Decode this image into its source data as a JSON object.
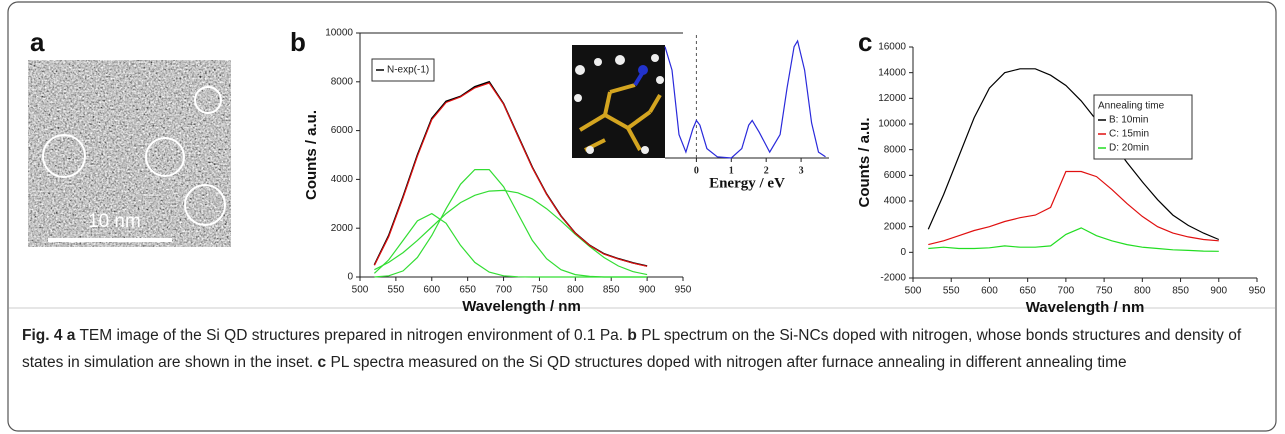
{
  "panel_labels": [
    "a",
    "b",
    "c"
  ],
  "tem_image": {
    "scale_bar": "10 nm"
  },
  "chart_data": [
    {
      "type": "line",
      "x_label": "Wavelength / nm",
      "y_label": "Counts / a.u.",
      "x": [
        520,
        540,
        560,
        580,
        600,
        620,
        640,
        660,
        680,
        700,
        720,
        740,
        760,
        780,
        800,
        820,
        840,
        860,
        880,
        900
      ],
      "series": [
        {
          "color": "#33dd33",
          "values": [
            150,
            700,
            1500,
            2300,
            2600,
            2200,
            1300,
            600,
            200,
            50,
            10,
            0,
            0,
            0,
            0,
            0,
            0,
            0,
            0,
            0
          ]
        },
        {
          "color": "#33dd33",
          "values": [
            0,
            50,
            250,
            800,
            1700,
            2800,
            3800,
            4400,
            4400,
            3700,
            2600,
            1500,
            750,
            300,
            100,
            30,
            0,
            0,
            0,
            0
          ]
        },
        {
          "color": "#33dd33",
          "values": [
            300,
            600,
            1000,
            1500,
            2050,
            2600,
            3050,
            3350,
            3520,
            3550,
            3450,
            3200,
            2800,
            2300,
            1750,
            1250,
            800,
            450,
            220,
            100
          ]
        },
        {
          "name": "N-exp(-1)",
          "color": "#000000",
          "values": [
            500,
            1700,
            3300,
            5000,
            6500,
            7200,
            7400,
            7800,
            8000,
            7100,
            5800,
            4500,
            3400,
            2500,
            1800,
            1300,
            950,
            750,
            580,
            450
          ]
        },
        {
          "color": "#e01010",
          "values": [
            480,
            1650,
            3250,
            4950,
            6450,
            7150,
            7380,
            7750,
            7950,
            7080,
            5780,
            4480,
            3390,
            2490,
            1790,
            1290,
            940,
            740,
            570,
            440
          ]
        }
      ],
      "xlim": [
        500,
        950
      ],
      "ylim": [
        0,
        10000
      ],
      "xticks": [
        500,
        550,
        600,
        650,
        700,
        750,
        800,
        850,
        900,
        950
      ],
      "yticks": [
        0,
        2000,
        4000,
        6000,
        8000,
        10000
      ],
      "legend": "upper left"
    },
    {
      "type": "line",
      "x_label": "Energy / eV",
      "x": [
        -0.9,
        -0.7,
        -0.5,
        -0.3,
        -0.1,
        0,
        0.1,
        0.3,
        0.6,
        1.0,
        1.3,
        1.5,
        1.6,
        1.8,
        2.1,
        2.4,
        2.6,
        2.8,
        2.9,
        3.1,
        3.3,
        3.5,
        3.7
      ],
      "series": [
        {
          "color": "#2a2adb",
          "values": [
            0.95,
            0.75,
            0.2,
            0.05,
            0.25,
            0.32,
            0.28,
            0.08,
            0.01,
            0.0,
            0.08,
            0.28,
            0.32,
            0.22,
            0.05,
            0.2,
            0.6,
            0.95,
            1.0,
            0.75,
            0.3,
            0.05,
            0.01
          ]
        }
      ],
      "xlim": [
        -0.9,
        3.8
      ],
      "ylim": [
        0,
        1.05
      ],
      "xticks": [
        0,
        1,
        2,
        3
      ],
      "vline": 0
    },
    {
      "type": "line",
      "x_label": "Wavelength / nm",
      "y_label": "Counts / a.u.",
      "x": [
        520,
        540,
        560,
        580,
        600,
        620,
        640,
        660,
        680,
        700,
        720,
        740,
        760,
        780,
        800,
        820,
        840,
        860,
        880,
        900
      ],
      "series": [
        {
          "name": "B: 10min",
          "color": "#000000",
          "values": [
            1800,
            4500,
            7500,
            10500,
            12800,
            14000,
            14300,
            14300,
            13800,
            13000,
            11800,
            10300,
            8600,
            7000,
            5500,
            4100,
            2900,
            2100,
            1500,
            1000
          ]
        },
        {
          "name": "C: 15min",
          "color": "#e01010",
          "values": [
            600,
            900,
            1300,
            1700,
            2000,
            2400,
            2700,
            2900,
            3500,
            6300,
            6300,
            5900,
            4900,
            3800,
            2800,
            2000,
            1500,
            1200,
            1000,
            900
          ]
        },
        {
          "name": "D: 20min",
          "color": "#22dd22",
          "values": [
            300,
            400,
            300,
            300,
            350,
            500,
            400,
            400,
            500,
            1400,
            1900,
            1300,
            900,
            600,
            400,
            300,
            200,
            150,
            100,
            80
          ]
        }
      ],
      "xlim": [
        500,
        950
      ],
      "ylim": [
        -2000,
        16000
      ],
      "xticks": [
        500,
        550,
        600,
        650,
        700,
        750,
        800,
        850,
        900,
        950
      ],
      "yticks": [
        -2000,
        0,
        2000,
        4000,
        6000,
        8000,
        10000,
        12000,
        14000,
        16000
      ],
      "legend": "center right",
      "legend_title": "Annealing time"
    }
  ],
  "caption": {
    "figure_label": "Fig. 4",
    "parts": [
      {
        "label": "a",
        "text": "TEM image of the Si QD structures prepared in nitrogen environment of 0.1 Pa."
      },
      {
        "label": "b",
        "text": "PL spectrum on the Si-NCs doped with nitrogen, whose bonds structures and density of states in simulation are shown in the inset."
      },
      {
        "label": "c",
        "text": "PL spectra measured on the Si QD structures doped with nitrogen after furnace annealing in different annealing time"
      }
    ]
  }
}
